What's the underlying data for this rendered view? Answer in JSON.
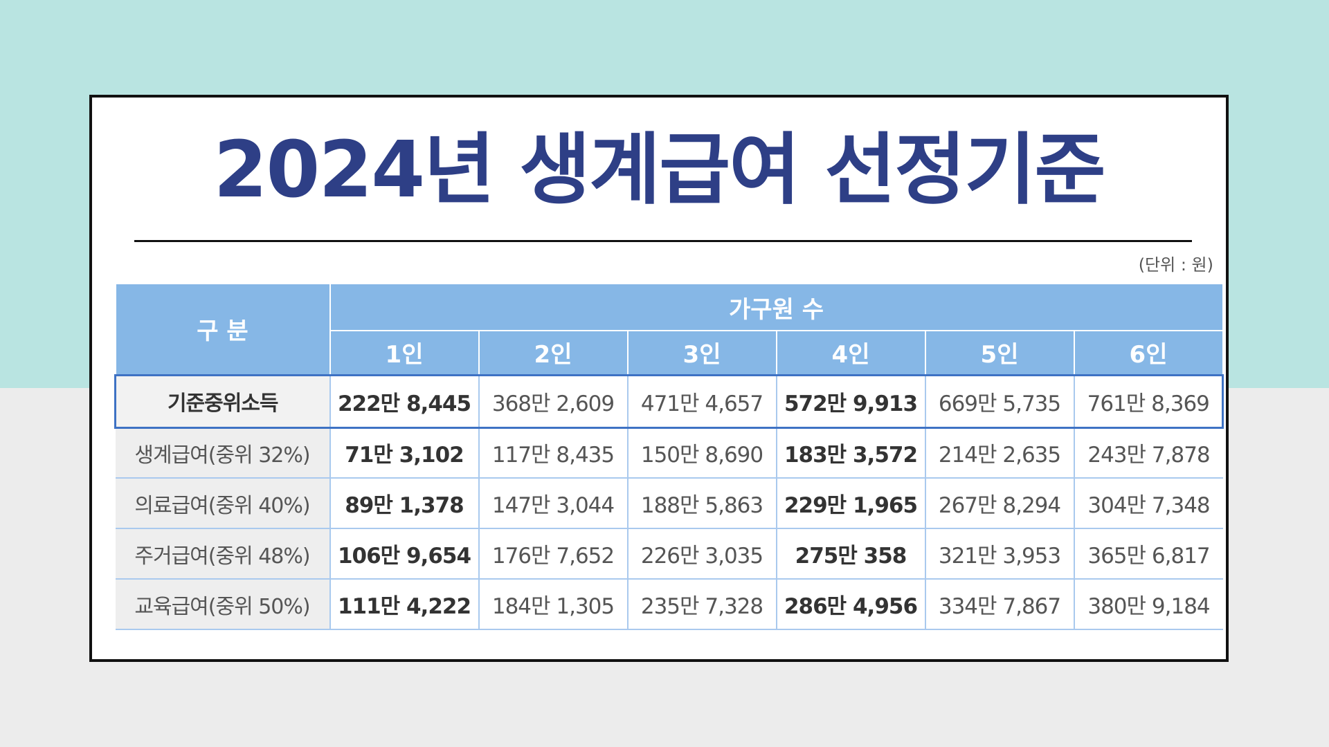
{
  "title": "2024년 생계급여 선정기준",
  "unit_note": "(단위 : 원)",
  "table": {
    "corner_header": "구 분",
    "group_header": "가구원 수",
    "columns": [
      "1인",
      "2인",
      "3인",
      "4인",
      "5인",
      "6인"
    ],
    "rows": [
      {
        "label": "기준중위소득",
        "cells": [
          "222만 8,445",
          "368만 2,609",
          "471만 4,657",
          "572만 9,913",
          "669만 5,735",
          "761만 8,369"
        ]
      },
      {
        "label": "생계급여(중위 32%)",
        "cells": [
          "71만 3,102",
          "117만 8,435",
          "150만 8,690",
          "183만 3,572",
          "214만 2,635",
          "243만 7,878"
        ]
      },
      {
        "label": "의료급여(중위 40%)",
        "cells": [
          "89만 1,378",
          "147만 3,044",
          "188만 5,863",
          "229만 1,965",
          "267만 8,294",
          "304만 7,348"
        ]
      },
      {
        "label": "주거급여(중위 48%)",
        "cells": [
          "106만 9,654",
          "176만 7,652",
          "226만 3,035",
          "275만 358",
          "321만 3,953",
          "365만 6,817"
        ]
      },
      {
        "label": "교육급여(중위 50%)",
        "cells": [
          "111만 4,222",
          "184만 1,305",
          "235만 7,328",
          "286만 4,956",
          "334만 7,867",
          "380만 9,184"
        ]
      }
    ]
  },
  "colors": {
    "title": "#2e3f86",
    "header_bg": "#86b7e6",
    "highlight_border": "#3e72c4",
    "bg_top": "#b9e4e1",
    "bg_bottom": "#ececec"
  }
}
